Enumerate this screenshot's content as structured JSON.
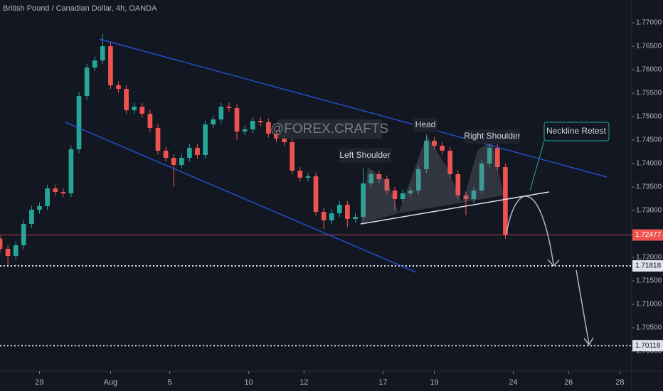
{
  "chart_data": {
    "type": "candlestick",
    "title": "British Pound / Canadian Dollar, 4h, OANDA",
    "watermark": "@FOREX.CRAFTS",
    "up_color": "#26a69a",
    "down_color": "#ef5350",
    "xlim": [
      0,
      160
    ],
    "xticks": [
      {
        "value": 10,
        "label": "29"
      },
      {
        "value": 28,
        "label": "Aug"
      },
      {
        "value": 43,
        "label": "5"
      },
      {
        "value": 63,
        "label": "10"
      },
      {
        "value": 77,
        "label": "12"
      },
      {
        "value": 97,
        "label": "17"
      },
      {
        "value": 110,
        "label": "19"
      },
      {
        "value": 130,
        "label": "24"
      },
      {
        "value": 144,
        "label": "26"
      },
      {
        "value": 157,
        "label": "28"
      }
    ],
    "ylim": [
      1.69576,
      1.77485
    ],
    "yticks": [
      {
        "value": 1.7,
        "label": "1.70000"
      },
      {
        "value": 1.705,
        "label": "1.70500"
      },
      {
        "value": 1.71,
        "label": "1.71000"
      },
      {
        "value": 1.715,
        "label": "1.71500"
      },
      {
        "value": 1.72,
        "label": "1.72000"
      },
      {
        "value": 1.725,
        "label": "1.72500"
      },
      {
        "value": 1.73,
        "label": "1.73000"
      },
      {
        "value": 1.735,
        "label": "1.73500"
      },
      {
        "value": 1.74,
        "label": "1.74000"
      },
      {
        "value": 1.745,
        "label": "1.74500"
      },
      {
        "value": 1.75,
        "label": "1.75000"
      },
      {
        "value": 1.755,
        "label": "1.75500"
      },
      {
        "value": 1.76,
        "label": "1.76000"
      },
      {
        "value": 1.765,
        "label": "1.76500"
      },
      {
        "value": 1.77,
        "label": "1.77000"
      }
    ],
    "x": [
      0,
      2,
      4,
      6,
      8,
      10,
      12,
      14,
      16,
      18,
      20,
      22,
      24,
      26,
      28,
      30,
      32,
      34,
      36,
      38,
      40,
      42,
      44,
      46,
      48,
      50,
      52,
      54,
      56,
      58,
      60,
      62,
      64,
      66,
      68,
      70,
      72,
      74,
      76,
      78,
      80,
      82,
      84,
      86,
      88,
      90,
      92,
      94,
      96,
      98,
      100,
      102,
      104,
      106,
      108,
      110,
      112,
      114,
      116,
      118,
      120,
      122,
      124,
      126,
      128
    ],
    "open": [
      1.724,
      1.72182,
      1.7203,
      1.72258,
      1.72712,
      1.73015,
      1.73091,
      1.7347,
      1.73394,
      1.73364,
      1.74303,
      1.75439,
      1.76045,
      1.76197,
      1.765,
      1.75667,
      1.75591,
      1.75136,
      1.7521,
      1.75061,
      1.74758,
      1.74273,
      1.74121,
      1.7397,
      1.74121,
      1.74333,
      1.74182,
      1.74833,
      1.74939,
      1.75212,
      1.75182,
      1.74682,
      1.74727,
      1.74909,
      1.74879,
      1.74636,
      1.7453,
      1.74455,
      1.73848,
      1.73697,
      1.73727,
      1.7297,
      1.72788,
      1.72939,
      1.73121,
      1.72818,
      1.72864,
      1.73576,
      1.73773,
      1.73667,
      1.73424,
      1.73242,
      1.73364,
      1.73424,
      1.73879,
      1.74485,
      1.74379,
      1.74273,
      1.73773,
      1.73318,
      1.73242,
      1.73424,
      1.74,
      1.74333,
      1.73924
    ],
    "high": [
      1.7248,
      1.72262,
      1.72338,
      1.72792,
      1.73095,
      1.73171,
      1.7355,
      1.7355,
      1.73474,
      1.74383,
      1.75519,
      1.76125,
      1.76277,
      1.7676,
      1.7658,
      1.75747,
      1.75671,
      1.7529,
      1.7529,
      1.75141,
      1.74838,
      1.74353,
      1.74201,
      1.74201,
      1.74413,
      1.74413,
      1.74913,
      1.75019,
      1.75292,
      1.753,
      1.75262,
      1.74807,
      1.74989,
      1.74989,
      1.74959,
      1.74716,
      1.7461,
      1.74535,
      1.73928,
      1.73807,
      1.73807,
      1.7305,
      1.73019,
      1.73201,
      1.73201,
      1.72944,
      1.739,
      1.73853,
      1.73853,
      1.73747,
      1.73504,
      1.73444,
      1.73504,
      1.73959,
      1.7462,
      1.74565,
      1.74459,
      1.74353,
      1.73853,
      1.73398,
      1.73504,
      1.7408,
      1.74413,
      1.74413,
      1.74004
    ],
    "low": [
      1.72102,
      1.71818,
      1.7195,
      1.72178,
      1.72632,
      1.72935,
      1.73011,
      1.73314,
      1.73284,
      1.73284,
      1.74223,
      1.75359,
      1.75965,
      1.76117,
      1.75587,
      1.75511,
      1.75056,
      1.75056,
      1.74981,
      1.74678,
      1.74193,
      1.74041,
      1.735,
      1.7389,
      1.74041,
      1.74102,
      1.74102,
      1.74753,
      1.74859,
      1.75102,
      1.745,
      1.74602,
      1.74647,
      1.74799,
      1.74556,
      1.7445,
      1.74375,
      1.73768,
      1.73617,
      1.73617,
      1.7289,
      1.726,
      1.72708,
      1.72859,
      1.7265,
      1.72738,
      1.72784,
      1.73496,
      1.73587,
      1.73344,
      1.73,
      1.73162,
      1.73284,
      1.73344,
      1.73799,
      1.74299,
      1.74193,
      1.73693,
      1.73238,
      1.729,
      1.73162,
      1.73344,
      1.7392,
      1.73844,
      1.72397
    ],
    "close": [
      1.72182,
      1.7203,
      1.72258,
      1.72712,
      1.73015,
      1.73091,
      1.7347,
      1.73394,
      1.73364,
      1.74303,
      1.75439,
      1.76045,
      1.76197,
      1.765,
      1.75667,
      1.75591,
      1.75136,
      1.7521,
      1.75061,
      1.74758,
      1.74273,
      1.74121,
      1.7397,
      1.74121,
      1.74333,
      1.74182,
      1.74833,
      1.74939,
      1.75212,
      1.75182,
      1.74682,
      1.74727,
      1.74909,
      1.74879,
      1.74636,
      1.7453,
      1.74455,
      1.73848,
      1.73697,
      1.73727,
      1.7297,
      1.72788,
      1.72939,
      1.73121,
      1.72818,
      1.72864,
      1.73576,
      1.73773,
      1.73667,
      1.73424,
      1.73242,
      1.73364,
      1.73424,
      1.73879,
      1.74485,
      1.74379,
      1.74273,
      1.73773,
      1.73318,
      1.73242,
      1.73424,
      1.74,
      1.74333,
      1.73924,
      1.72477
    ],
    "last_price": 1.72477,
    "target_levels": [
      1.71818,
      1.70118
    ],
    "annotations": {
      "left_shoulder": "Left Shoulder",
      "head": "Head",
      "right_shoulder": "Right Shoulder",
      "neckline_retest": "Neckline Retest"
    }
  }
}
